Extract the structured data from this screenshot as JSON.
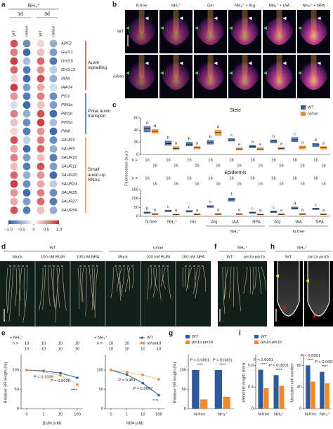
{
  "panel_a": {
    "letter": "a",
    "title": "NH₄⁺",
    "timepoints": [
      "1d",
      "3d"
    ],
    "columns": [
      "WT",
      "rohan",
      "WT",
      "rohan"
    ],
    "colors": [
      "#2c5aa0",
      "#ffffff",
      "#c8272e"
    ],
    "groups": [
      {
        "label": "Auxin signalling",
        "color": "#d42a2a",
        "genes": [
          {
            "name": "ARF2",
            "values": [
              0.8,
              -0.7,
              0.2,
              -0.5
            ]
          },
          {
            "name": "GH3.1",
            "values": [
              0.6,
              -0.9,
              0.3,
              -0.6
            ]
          },
          {
            "name": "GH3.5",
            "values": [
              0.9,
              -0.4,
              0.7,
              -0.8
            ]
          },
          {
            "name": "GH3.13",
            "values": [
              0.7,
              -0.8,
              0.5,
              -0.3
            ]
          },
          {
            "name": "IAA6",
            "values": [
              0.2,
              -0.9,
              0.8,
              -0.5
            ]
          },
          {
            "name": "IAA14",
            "values": [
              0.9,
              -0.6,
              0.4,
              -0.2
            ]
          }
        ]
      },
      {
        "label": "Polar auxin transport",
        "color": "#2c5aa0",
        "genes": [
          {
            "name": "PIS1",
            "values": [
              0.5,
              -0.8,
              0.6,
              -0.7
            ]
          },
          {
            "name": "PIN1a",
            "values": [
              -0.2,
              -0.9,
              0.3,
              -0.6
            ]
          },
          {
            "name": "PIN1b",
            "values": [
              0.6,
              -0.5,
              0.8,
              -0.9
            ]
          },
          {
            "name": "PIN5a",
            "values": [
              0.3,
              -0.7,
              0.9,
              -0.4
            ]
          },
          {
            "name": "PIN8",
            "values": [
              0.2,
              -0.8,
              0.5,
              -0.9
            ]
          }
        ]
      },
      {
        "label": "Small auxin-up RNAs",
        "color": "#ee8a2a",
        "genes": [
          {
            "name": "SAUR3",
            "values": [
              0.8,
              -0.3,
              0.6,
              -0.7
            ]
          },
          {
            "name": "SAUR9",
            "values": [
              0.4,
              -0.9,
              0.7,
              -0.5
            ]
          },
          {
            "name": "SAUR10",
            "values": [
              0.6,
              -0.6,
              0.3,
              -0.8
            ]
          },
          {
            "name": "SAUR11",
            "values": [
              0.3,
              -0.8,
              0.8,
              -0.6
            ]
          },
          {
            "name": "SAUR20",
            "values": [
              0.7,
              -0.5,
              0.5,
              -0.9
            ]
          },
          {
            "name": "SAUR24",
            "values": [
              0.9,
              -0.7,
              0.4,
              -0.3
            ]
          },
          {
            "name": "SAUR25",
            "values": [
              0.5,
              -0.9,
              0.6,
              -0.7
            ]
          },
          {
            "name": "SAUR27",
            "values": [
              0.4,
              -0.6,
              0.7,
              -0.8
            ]
          },
          {
            "name": "SAUR56",
            "values": [
              0.8,
              -0.8,
              0.3,
              -0.5
            ]
          }
        ]
      }
    ],
    "colorbar": {
      "lim": [
        -1,
        1
      ],
      "ticks": [
        {
          "value": -1,
          "label": "−1.0"
        },
        {
          "value": -0.5,
          "label": "−0.5"
        },
        0,
        0.5,
        {
          "value": 1,
          "label": "1.0"
        }
      ]
    }
  },
  "panel_b": {
    "letter": "b",
    "columns": [
      "N-free",
      "NH₄⁺",
      "Gln",
      "NH₄⁺ + Arg",
      "NH₄⁺ + IAA",
      "NH₄⁺ + NPA"
    ],
    "rows": [
      "WT",
      "rohan"
    ],
    "markers": [
      "St",
      "Ep"
    ]
  },
  "panel_c": {
    "letter": "c",
    "type": "box",
    "ylabel": "Fluorescence (a.u.)",
    "n_label": "n =",
    "series": [
      {
        "name": "WT",
        "color": "#2e5a9c"
      },
      {
        "name": "rohan",
        "color": "#ee8a2a"
      }
    ],
    "categories": [
      "N-free",
      "NH₄⁺",
      "Gln",
      "Arg",
      "IAA",
      "NPA",
      "Arg",
      "IAA",
      "NPA"
    ],
    "groups": [
      "NH₄⁺",
      "N-free"
    ],
    "plots": [
      {
        "title": "Stele",
        "ylim": [
          0,
          60
        ],
        "yticks": [
          0,
          20,
          40,
          60
        ],
        "data": [
          {
            "median": [
              42,
              18,
              17,
              20,
              24,
              13,
              22,
              24,
              16
            ],
            "q1": [
              37,
              15,
              14,
              17,
              22,
              11,
              19,
              21,
              13
            ],
            "q3": [
              46,
              22,
              20,
              23,
              26,
              15,
              24,
              28,
              18
            ],
            "letters": [
              "d",
              "b",
              "b",
              "b",
              "c",
              "a",
              "b",
              "c",
              "b"
            ],
            "n": [
              16,
              16,
              16,
              16,
              16,
              16,
              16,
              16,
              16
            ]
          },
          {
            "median": [
              38,
              10,
              11,
              36,
              9,
              9,
              10,
              12,
              11
            ],
            "q1": [
              35,
              8,
              9,
              31,
              7,
              7,
              8,
              9,
              9
            ],
            "q3": [
              41,
              13,
              13,
              40,
              11,
              11,
              12,
              14,
              13
            ],
            "letters": [
              "d",
              "a",
              "a",
              "d",
              "a",
              "a",
              "a",
              "a",
              "a"
            ],
            "n": [
              16,
              16,
              16,
              16,
              16,
              16,
              16,
              16,
              16
            ]
          }
        ]
      },
      {
        "title": "Epidermis",
        "ylim": [
          0,
          150
        ],
        "yticks": [
          0,
          50,
          100,
          150
        ],
        "data": [
          {
            "median": [
              20,
              30,
              28,
              55,
              95,
              20,
              25,
              45,
              42
            ],
            "q1": [
              16,
              26,
              24,
              50,
              85,
              16,
              21,
              40,
              38
            ],
            "q3": [
              24,
              34,
              32,
              60,
              102,
              24,
              29,
              52,
              46
            ],
            "letters": [
              "b",
              "c",
              "c",
              "e",
              "f",
              "c",
              "c",
              "d",
              "c"
            ],
            "n": [
              16,
              16,
              16,
              16,
              16,
              16,
              16,
              16,
              16
            ]
          },
          {
            "median": [
              12,
              10,
              11,
              12,
              12,
              10,
              11,
              12,
              11
            ],
            "q1": [
              9,
              8,
              9,
              9,
              9,
              8,
              9,
              9,
              9
            ],
            "q3": [
              15,
              13,
              14,
              15,
              15,
              13,
              14,
              15,
              14
            ],
            "letters": [
              "a",
              "a",
              "a",
              "a",
              "a",
              "a",
              "a",
              "a",
              "a"
            ],
            "n": [
              16,
              16,
              16,
              16,
              16,
              16,
              16,
              16,
              16
            ]
          }
        ]
      }
    ]
  },
  "panel_d": {
    "letter": "d",
    "genotypes": [
      "WT",
      "rohan"
    ],
    "treatments": [
      "Mock",
      "100 nM BUM",
      "100 nM NPA",
      "Mock",
      "100 nM BUM",
      "100 nM NPA"
    ]
  },
  "panel_f": {
    "letter": "f",
    "condition": "NH₄⁺",
    "genotypes": [
      "WT",
      "pin1a pin1b"
    ]
  },
  "panel_h": {
    "letter": "h",
    "condition": "NH₄⁺",
    "genotypes": [
      "WT",
      "pin1a pin1b"
    ]
  },
  "panel_e": {
    "letter": "e",
    "type": "line",
    "ylabel": "Relative SR length (%)",
    "n_label": "n =",
    "series": [
      {
        "name": "WT",
        "color": "#2e5a9c"
      },
      {
        "name": "rohan",
        "color": "#ee8a2a"
      }
    ],
    "charts": [
      {
        "condition": "+ NH₄⁺",
        "xlabel": "BUM (nM)",
        "categories": [
          "0",
          "1",
          "10",
          "100"
        ],
        "ylim": [
          0,
          140
        ],
        "yticks": [
          0,
          50,
          100
        ],
        "values": [
          [
            100,
            98,
            92,
            80
          ],
          [
            100,
            96,
            86,
            62
          ]
        ],
        "n": [
          [
            10,
            10,
            10,
            10
          ],
          [
            10,
            10,
            10,
            10
          ]
        ],
        "p_labels": [
          null,
          "P = 0.1039",
          "P = 0.0026",
          "****"
        ]
      },
      {
        "condition": "+ NH₄⁺",
        "xlabel": "NPA (nM)",
        "categories": [
          "0",
          "1",
          "10",
          "100"
        ],
        "ylim": [
          0,
          140
        ],
        "yticks": [
          0,
          50,
          100
        ],
        "values": [
          [
            100,
            88,
            66,
            35
          ],
          [
            100,
            95,
            87,
            76
          ]
        ],
        "n": [
          [
            10,
            10,
            10,
            10
          ],
          [
            10,
            10,
            10,
            10
          ]
        ],
        "p_labels": [
          null,
          "P = 0.451",
          "P = 0.0007",
          "****"
        ]
      }
    ]
  },
  "panel_g": {
    "letter": "g",
    "type": "bar",
    "series": [
      {
        "name": "WT",
        "color": "#2e5a9c"
      },
      {
        "name": "pin1a pin1b",
        "color": "#ee8a2a"
      }
    ],
    "categories": [
      "N-free",
      "NH₄⁺"
    ],
    "charts": [
      {
        "ylabel": "Relative SR length (%)",
        "ylim": [
          0,
          140
        ],
        "yticks": [
          0,
          50,
          100
        ],
        "values": [
          [
            100,
            100
          ],
          [
            24,
            31
          ]
        ],
        "p_labels": [
          "P < 0.0001",
          "P < 0.0001"
        ],
        "stars": [
          "****",
          "****"
        ]
      }
    ]
  },
  "panel_i": {
    "letter": "i",
    "type": "bar",
    "series": [
      {
        "name": "WT",
        "color": "#2e5a9c"
      },
      {
        "name": "pin1a pin1b",
        "color": "#ee8a2a"
      }
    ],
    "categories": [
      "N-free",
      "NH₄⁺"
    ],
    "charts": [
      {
        "ylabel": "Meristem length (mm)",
        "ylim": [
          0,
          1
        ],
        "yticks": [
          0,
          0.4,
          0.8
        ],
        "values": [
          [
            0.72,
            0.62
          ],
          [
            0.38,
            0.42
          ]
        ],
        "p_labels": [
          "P < 0.0001",
          "P < 0.0001"
        ],
        "stars": [
          "****",
          "****"
        ]
      },
      {
        "ylabel": "Meristem cell number",
        "ylim": [
          0,
          100
        ],
        "yticks": [
          0,
          40,
          80
        ],
        "values": [
          [
            80,
            68
          ],
          [
            50,
            47
          ]
        ],
        "p_labels": [
          "P < 0.0001",
          "P < 0.0001"
        ],
        "stars": [
          "****",
          "****"
        ]
      }
    ]
  }
}
